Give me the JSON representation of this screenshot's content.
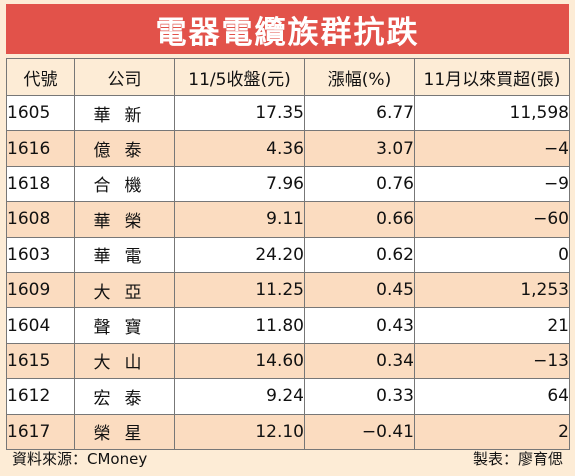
{
  "title": "電器電纜族群抗跌",
  "table": {
    "headers": [
      "代號",
      "公司",
      "11/5收盤(元)",
      "漲幅(%)",
      "11月以來買超(張)"
    ],
    "rows": [
      {
        "code": "1605",
        "company": "華新",
        "close": "17.35",
        "change": "6.77",
        "net_buy": "11,598"
      },
      {
        "code": "1616",
        "company": "億泰",
        "close": "4.36",
        "change": "3.07",
        "net_buy": "−4"
      },
      {
        "code": "1618",
        "company": "合機",
        "close": "7.96",
        "change": "0.76",
        "net_buy": "−9"
      },
      {
        "code": "1608",
        "company": "華榮",
        "close": "9.11",
        "change": "0.66",
        "net_buy": "−60"
      },
      {
        "code": "1603",
        "company": "華電",
        "close": "24.20",
        "change": "0.62",
        "net_buy": "0"
      },
      {
        "code": "1609",
        "company": "大亞",
        "close": "11.25",
        "change": "0.45",
        "net_buy": "1,253"
      },
      {
        "code": "1604",
        "company": "聲寶",
        "close": "11.80",
        "change": "0.43",
        "net_buy": "21"
      },
      {
        "code": "1615",
        "company": "大山",
        "close": "14.60",
        "change": "0.34",
        "net_buy": "−13"
      },
      {
        "code": "1612",
        "company": "宏泰",
        "close": "9.24",
        "change": "0.33",
        "net_buy": "64"
      },
      {
        "code": "1617",
        "company": "榮星",
        "close": "12.10",
        "change": "−0.41",
        "net_buy": "2"
      }
    ]
  },
  "footer": {
    "source": "資料來源：CMoney",
    "author": "製表：廖育偲"
  },
  "colors": {
    "title_bg": "#e2524a",
    "page_bg": "#fdecd6",
    "row_alt": "#fbdcc0"
  }
}
